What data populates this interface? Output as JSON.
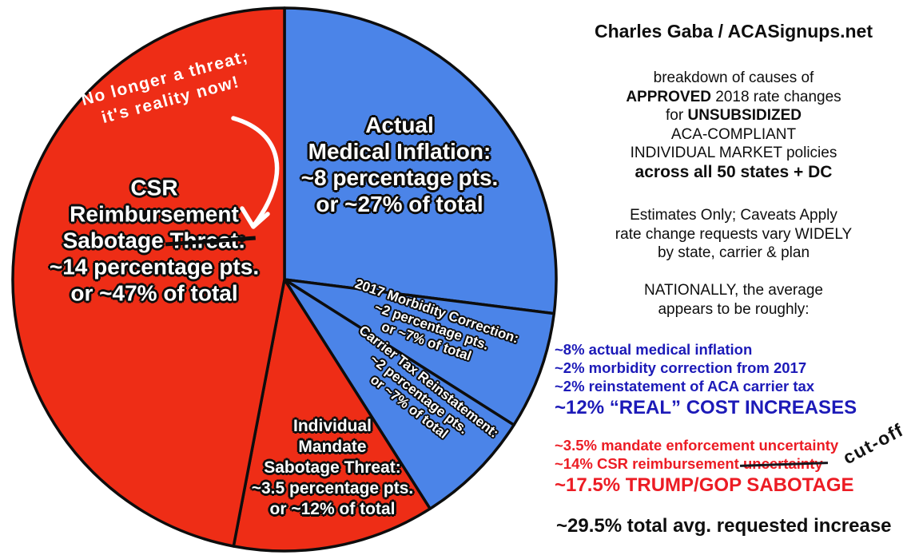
{
  "source": "Charles Gaba / ACASignups.net",
  "about": {
    "line1": "breakdown of causes of",
    "line2_bold": "APPROVED",
    "line2_rest": " 2018 rate changes",
    "line3_pre": "for ",
    "line3_bold": "UNSUBSIDIZED",
    "line4": "ACA-COMPLIANT",
    "line5": "INDIVIDUAL MARKET policies",
    "line6": "across all 50 states + DC"
  },
  "caveats": [
    "Estimates Only; Caveats Apply",
    "rate change requests vary WIDELY",
    "by state, carrier & plan"
  ],
  "nationally": [
    "NATIONALLY, the average",
    "appears to be roughly:"
  ],
  "blue_breakdown": {
    "color": "#1c1ab8",
    "items": [
      "~8% actual medical inflation",
      "~2% morbidity correction from 2017",
      "~2% reinstatement of ACA carrier tax"
    ],
    "subtotal": "~12% “REAL” COST INCREASES"
  },
  "red_breakdown": {
    "color": "#ec1c24",
    "item1": "~3.5% mandate enforcement uncertainty",
    "item2_pre": "~14% CSR reimbursement ",
    "item2_struck": "uncertainty",
    "subtotal": "~17.5% TRUMP/GOP SABOTAGE"
  },
  "total_line": "~29.5% total avg. requested increase",
  "cutoff_note": "cut-off",
  "annotation": {
    "line1": "No longer a threat;",
    "line2": "it's reality now!"
  },
  "chart_data": {
    "type": "pie",
    "order": "clockwise from 12 o'clock",
    "legend": "blue = real cost increases, red = sabotage threats",
    "colors": {
      "real_costs": "#4b84e8",
      "sabotage": "#ee2d16",
      "border": "#0d0d0d"
    },
    "slices": [
      {
        "name": "Actual Medical Inflation",
        "points": 8,
        "percent": 27,
        "color": "#4b84e8",
        "label_lines": [
          "Actual",
          "Medical Inflation:",
          "~8 percentage pts.",
          "or ~27% of total"
        ]
      },
      {
        "name": "2017 Morbidity Correction",
        "points": 2,
        "percent": 7,
        "color": "#4b84e8",
        "label_lines": [
          "2017 Morbidity Correction:",
          "~2 percentage pts.",
          "or ~7% of total"
        ]
      },
      {
        "name": "Carrier Tax Reinstatement",
        "points": 2,
        "percent": 7,
        "color": "#4b84e8",
        "label_lines": [
          "Carrier Tax Reinstatement:",
          "~2 percentage pts.",
          "or ~7% of total"
        ]
      },
      {
        "name": "Individual Mandate Sabotage Threat",
        "points": 3.5,
        "percent": 12,
        "color": "#ee2d16",
        "label_lines": [
          "Individual",
          "Mandate",
          "Sabotage Threat:",
          "~3.5 percentage pts.",
          "or ~12% of total"
        ]
      },
      {
        "name": "CSR Reimbursement Sabotage Threat",
        "points": 14,
        "percent": 47,
        "color": "#ee2d16",
        "label_lines_top": [
          "CSR",
          "Reimbursement"
        ],
        "label_line3_pre": "Sabotage ",
        "label_line3_struck": "Threat:",
        "label_lines_bottom": [
          "~14 percentage pts.",
          "or ~47% of total"
        ]
      }
    ]
  }
}
